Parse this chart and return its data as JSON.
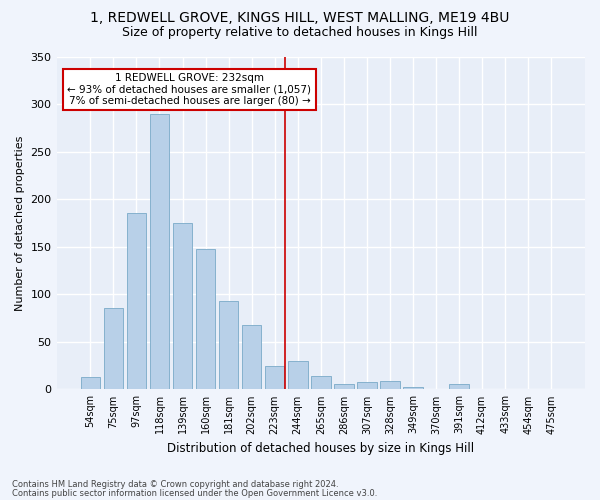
{
  "title": "1, REDWELL GROVE, KINGS HILL, WEST MALLING, ME19 4BU",
  "subtitle": "Size of property relative to detached houses in Kings Hill",
  "xlabel": "Distribution of detached houses by size in Kings Hill",
  "ylabel": "Number of detached properties",
  "bar_labels": [
    "54sqm",
    "75sqm",
    "97sqm",
    "118sqm",
    "139sqm",
    "160sqm",
    "181sqm",
    "202sqm",
    "223sqm",
    "244sqm",
    "265sqm",
    "286sqm",
    "307sqm",
    "328sqm",
    "349sqm",
    "370sqm",
    "391sqm",
    "412sqm",
    "433sqm",
    "454sqm",
    "475sqm"
  ],
  "bar_values": [
    13,
    86,
    185,
    290,
    175,
    148,
    93,
    68,
    25,
    30,
    14,
    6,
    8,
    9,
    3,
    0,
    6,
    0,
    0,
    0,
    0
  ],
  "bar_color": "#b8d0e8",
  "bar_edge_color": "#7aaac8",
  "background_color": "#e8eef8",
  "grid_color": "#ffffff",
  "marker_label": "1 REDWELL GROVE: 232sqm",
  "annotation_line1": "← 93% of detached houses are smaller (1,057)",
  "annotation_line2": "7% of semi-detached houses are larger (80) →",
  "footer1": "Contains HM Land Registry data © Crown copyright and database right 2024.",
  "footer2": "Contains public sector information licensed under the Open Government Licence v3.0.",
  "ylim": [
    0,
    350
  ],
  "yticks": [
    0,
    50,
    100,
    150,
    200,
    250,
    300,
    350
  ],
  "title_fontsize": 10,
  "subtitle_fontsize": 9,
  "ylabel_fontsize": 8,
  "xlabel_fontsize": 8.5,
  "tick_fontsize": 7,
  "annotation_fontsize": 7.5,
  "footer_fontsize": 6,
  "annotation_box_color": "#ffffff",
  "annotation_box_edge": "#cc0000",
  "marker_line_color": "#cc0000",
  "fig_bg": "#f0f4fc"
}
